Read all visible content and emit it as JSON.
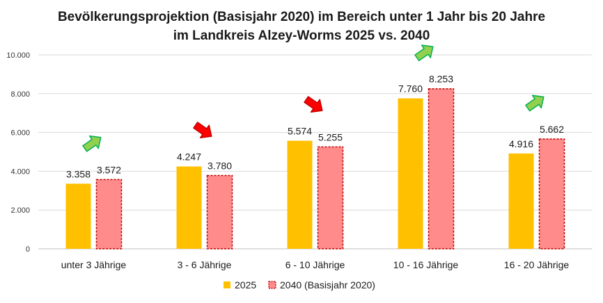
{
  "chart_data": {
    "type": "bar",
    "title": "Bevölkerungsprojektion (Basisjahr 2020) im Bereich unter 1 Jahr bis 20 Jahre",
    "subtitle": "im Landkreis Alzey-Worms 2025 vs. 2040",
    "categories": [
      "unter 3 Jährige",
      "3 - 6 Jährige",
      "6 - 10 Jährige",
      "10 - 16 Jährige",
      "16 - 20 Jährige"
    ],
    "series": [
      {
        "name": "2025",
        "values": [
          3358,
          4247,
          5574,
          7760,
          4916
        ],
        "labels": [
          "3.358",
          "4.247",
          "5.574",
          "7.760",
          "4.916"
        ],
        "color": "#FFC000"
      },
      {
        "name": "2040 (Basisjahr 2020)",
        "values": [
          3572,
          3780,
          5255,
          8253,
          5662
        ],
        "labels": [
          "3.572",
          "3.780",
          "5.255",
          "8.253",
          "5.662"
        ],
        "color": "#FF8B8B",
        "border": "#C00000"
      }
    ],
    "ylim": [
      0,
      10000
    ],
    "yticks": [
      0,
      2000,
      4000,
      6000,
      8000,
      10000
    ],
    "ytick_labels": [
      "0",
      "2.000",
      "4.000",
      "6.000",
      "8.000",
      "10.000"
    ],
    "grid": true,
    "legend_position": "bottom",
    "trend_arrows": [
      "up",
      "down",
      "down",
      "up",
      "up"
    ],
    "arrow_colors": {
      "up": "#92D050",
      "down": "#FF0000"
    }
  }
}
